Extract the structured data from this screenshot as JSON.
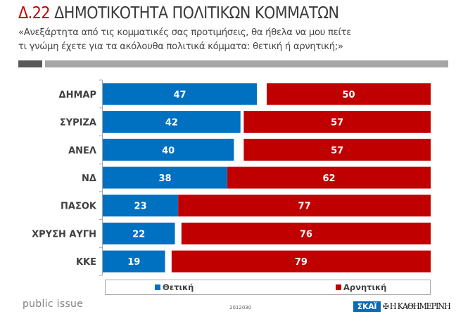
{
  "header": {
    "code": "Δ.22",
    "title": "ΔΗΜΟΤΙΚΟΤΗΤΑ ΠΟΛΙΤΙΚΩΝ ΚΟΜΜΑΤΩΝ",
    "question_line1": "«Ανεξάρτητα από τις κομματικές σας προτιμήσεις, θα ήθελα να μου πείτε",
    "question_line2": "τι γνώμη έχετε για τα ακόλουθα πολιτικά κόμματα: θετική ή αρνητική;»"
  },
  "chart_data": {
    "type": "bar",
    "orientation": "horizontal",
    "layout": "diverging-stacked",
    "categories": [
      "ΔΗΜΑΡ",
      "ΣΥΡΙΖΑ",
      "ΑΝΕΛ",
      "ΝΔ",
      "ΠΑΣΟΚ",
      "ΧΡΥΣΗ ΑΥΓΗ",
      "ΚΚΕ"
    ],
    "series": [
      {
        "name": "Θετική",
        "color": "#0070c0",
        "values": [
          47,
          42,
          40,
          38,
          23,
          22,
          19
        ],
        "align": "left"
      },
      {
        "name": "Αρνητική",
        "color": "#c00000",
        "values": [
          50,
          57,
          57,
          62,
          77,
          76,
          79
        ],
        "align": "right"
      }
    ],
    "xlim": [
      0,
      100
    ],
    "grid": false,
    "legend_position": "bottom",
    "data_labels": true
  },
  "legend": {
    "positive": "Θετική",
    "negative": "Αρνητική"
  },
  "footer": {
    "brand": "public issue",
    "code": "2012030",
    "logo_skai": "ΣΚΑΪ",
    "logo_kathimerini": "Η ΚΑΘΗΜΕΡΙΝΗ"
  }
}
